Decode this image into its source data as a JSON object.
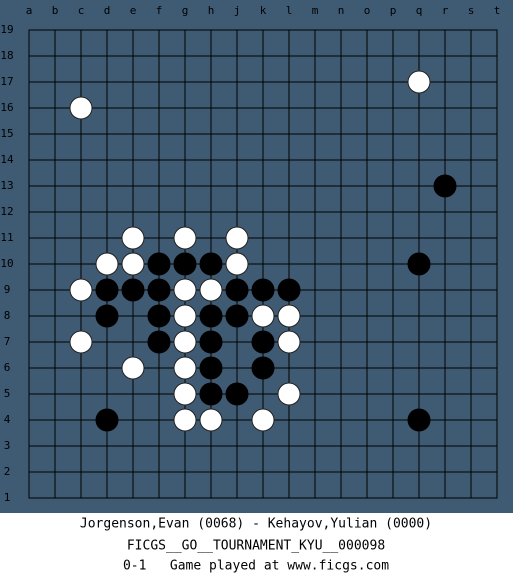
{
  "board": {
    "columns": [
      "a",
      "b",
      "c",
      "d",
      "e",
      "f",
      "g",
      "h",
      "j",
      "k",
      "l",
      "m",
      "n",
      "o",
      "p",
      "q",
      "r",
      "s",
      "t"
    ],
    "rows": [
      19,
      18,
      17,
      16,
      15,
      14,
      13,
      12,
      11,
      10,
      9,
      8,
      7,
      6,
      5,
      4,
      3,
      2,
      1
    ],
    "stones": [
      {
        "color": "white",
        "col": "q",
        "row": 17
      },
      {
        "color": "white",
        "col": "c",
        "row": 16
      },
      {
        "color": "white",
        "col": "e",
        "row": 11
      },
      {
        "color": "white",
        "col": "g",
        "row": 11
      },
      {
        "color": "white",
        "col": "j",
        "row": 11
      },
      {
        "color": "white",
        "col": "d",
        "row": 10
      },
      {
        "color": "white",
        "col": "e",
        "row": 10
      },
      {
        "color": "white",
        "col": "j",
        "row": 10
      },
      {
        "color": "white",
        "col": "c",
        "row": 9
      },
      {
        "color": "white",
        "col": "g",
        "row": 9
      },
      {
        "color": "white",
        "col": "h",
        "row": 9
      },
      {
        "color": "white",
        "col": "g",
        "row": 8
      },
      {
        "color": "white",
        "col": "k",
        "row": 8
      },
      {
        "color": "white",
        "col": "l",
        "row": 8
      },
      {
        "color": "white",
        "col": "c",
        "row": 7
      },
      {
        "color": "white",
        "col": "g",
        "row": 7
      },
      {
        "color": "white",
        "col": "l",
        "row": 7
      },
      {
        "color": "white",
        "col": "e",
        "row": 6
      },
      {
        "color": "white",
        "col": "g",
        "row": 6
      },
      {
        "color": "white",
        "col": "g",
        "row": 5
      },
      {
        "color": "white",
        "col": "l",
        "row": 5
      },
      {
        "color": "white",
        "col": "g",
        "row": 4
      },
      {
        "color": "white",
        "col": "h",
        "row": 4
      },
      {
        "color": "white",
        "col": "k",
        "row": 4
      },
      {
        "color": "black",
        "col": "r",
        "row": 13
      },
      {
        "color": "black",
        "col": "f",
        "row": 10
      },
      {
        "color": "black",
        "col": "g",
        "row": 10
      },
      {
        "color": "black",
        "col": "h",
        "row": 10
      },
      {
        "color": "black",
        "col": "q",
        "row": 10
      },
      {
        "color": "black",
        "col": "d",
        "row": 9
      },
      {
        "color": "black",
        "col": "e",
        "row": 9
      },
      {
        "color": "black",
        "col": "f",
        "row": 9
      },
      {
        "color": "black",
        "col": "j",
        "row": 9
      },
      {
        "color": "black",
        "col": "k",
        "row": 9
      },
      {
        "color": "black",
        "col": "l",
        "row": 9
      },
      {
        "color": "black",
        "col": "d",
        "row": 8
      },
      {
        "color": "black",
        "col": "f",
        "row": 8
      },
      {
        "color": "black",
        "col": "h",
        "row": 8
      },
      {
        "color": "black",
        "col": "j",
        "row": 8
      },
      {
        "color": "black",
        "col": "f",
        "row": 7
      },
      {
        "color": "black",
        "col": "h",
        "row": 7
      },
      {
        "color": "black",
        "col": "k",
        "row": 7
      },
      {
        "color": "black",
        "col": "h",
        "row": 6
      },
      {
        "color": "black",
        "col": "k",
        "row": 6
      },
      {
        "color": "black",
        "col": "h",
        "row": 5
      },
      {
        "color": "black",
        "col": "j",
        "row": 5
      },
      {
        "color": "black",
        "col": "d",
        "row": 4
      },
      {
        "color": "black",
        "col": "q",
        "row": 4
      }
    ]
  },
  "footer": {
    "players": "Jorgenson,Evan (0068) - Kehayov,Yulian (0000)",
    "tournament": "FICGS__GO__TOURNAMENT_KYU__000098",
    "result": "0-1   Game played at www.ficgs.com"
  }
}
